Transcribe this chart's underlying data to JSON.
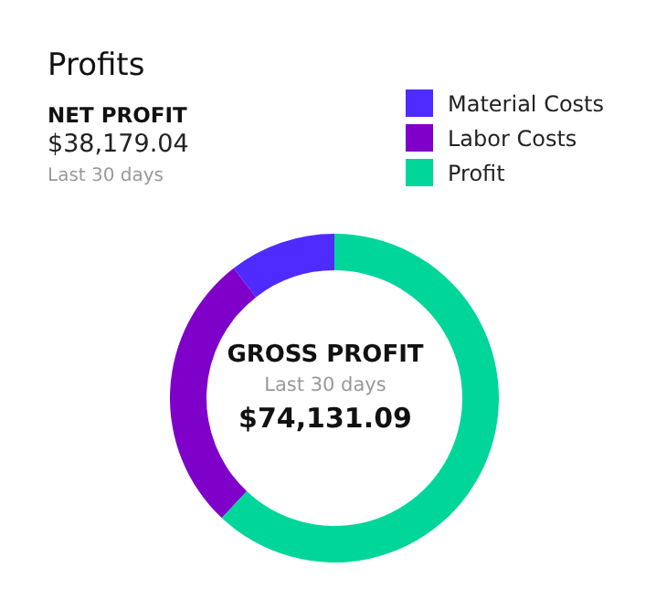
{
  "chart_data": {
    "type": "donut",
    "title": "Profits",
    "categories": [
      "Material Costs",
      "Labor Costs",
      "Profit"
    ],
    "values": [
      10.5,
      27.5,
      62
    ],
    "colors": [
      "#4f2bff",
      "#7f00c8",
      "#00d59a"
    ],
    "legend": "top right",
    "annotations": [
      "NET PROFIT",
      "$38,179.04",
      "Last 30 days",
      "GROSS PROFIT",
      "Last 30 days",
      "$74,131.09"
    ]
  }
}
